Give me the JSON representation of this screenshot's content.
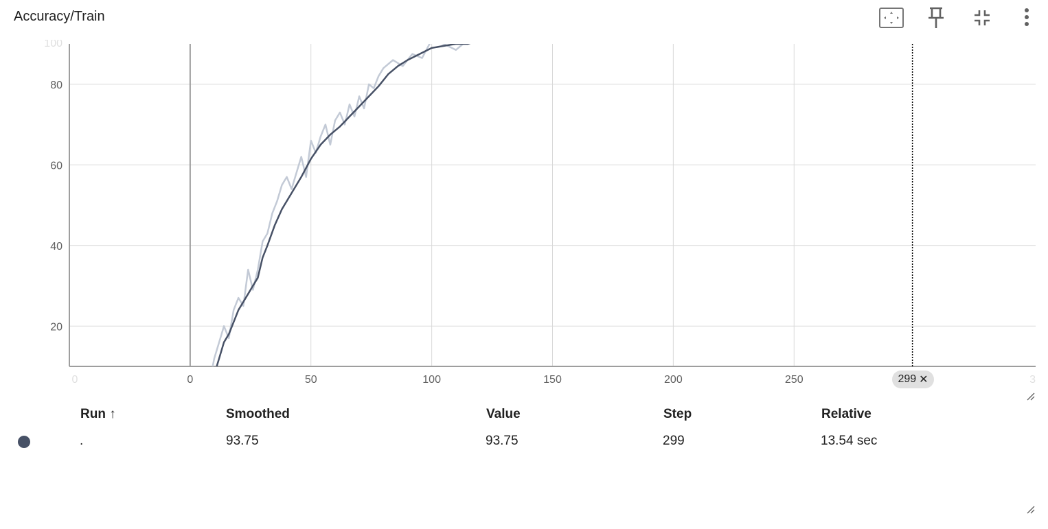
{
  "title": "Accuracy/Train",
  "toolbar": [
    {
      "name": "fit-domain-button",
      "icon": "fit-to-data-icon"
    },
    {
      "name": "pin-button",
      "icon": "pin-icon"
    },
    {
      "name": "collapse-button",
      "icon": "collapse-icon"
    },
    {
      "name": "more-options-button",
      "icon": "more-vert-icon"
    }
  ],
  "colors": {
    "smoothed_line": "#475166",
    "raw_line": "#c3cad6",
    "grid": "#d9d9d9",
    "axis": "#9e9e9e"
  },
  "chart_data": {
    "type": "line",
    "title": "Accuracy/Train",
    "xlabel": "",
    "ylabel": "",
    "xlim": [
      -50,
      350
    ],
    "ylim": [
      10,
      90
    ],
    "x_ticks": [
      0,
      50,
      100,
      150,
      200,
      250
    ],
    "x_ticks_faint": [
      "0",
      "3"
    ],
    "y_ticks": [
      20,
      40,
      60,
      80
    ],
    "y_tick_faint": "100",
    "grid": true,
    "cursor_step": 299,
    "cursor_label": "299",
    "series": [
      {
        "name": ".",
        "role": "smoothed",
        "x": [
          8,
          10,
          12,
          14,
          16,
          18,
          20,
          22,
          24,
          26,
          28,
          30,
          32,
          35,
          38,
          42,
          46,
          50,
          54,
          58,
          62,
          66,
          70,
          74,
          78,
          82,
          86,
          90,
          95,
          100,
          105,
          110,
          115,
          120,
          125,
          130,
          140,
          150,
          160,
          170,
          180,
          190,
          200,
          210,
          220,
          230,
          240,
          250,
          260,
          270,
          280,
          299
        ],
        "values": [
          5,
          8,
          12,
          16,
          18,
          21,
          24,
          26,
          28,
          30,
          32,
          37,
          40,
          45,
          49,
          53,
          57,
          61.5,
          65,
          67.5,
          69.5,
          72,
          74.5,
          77,
          79.5,
          82.5,
          84.5,
          86,
          87.5,
          89,
          89.5,
          90,
          90,
          91,
          91,
          91.5,
          91.8,
          92,
          92,
          92.3,
          92.6,
          92.8,
          93,
          93.2,
          93.4,
          93.5,
          93.6,
          93.7,
          93.7,
          93.75,
          93.75,
          93.75
        ]
      },
      {
        "name": ".",
        "role": "raw",
        "x": [
          8,
          10,
          12,
          14,
          16,
          18,
          20,
          22,
          24,
          26,
          28,
          30,
          32,
          34,
          36,
          38,
          40,
          42,
          44,
          46,
          48,
          50,
          52,
          54,
          56,
          58,
          60,
          62,
          64,
          66,
          68,
          70,
          72,
          74,
          76,
          78,
          80,
          84,
          88,
          92,
          96,
          100,
          105,
          110,
          115,
          120,
          125,
          130,
          135,
          140,
          145,
          150,
          160,
          170,
          180,
          190,
          200,
          210,
          220,
          230,
          240,
          250,
          260,
          270,
          280,
          299
        ],
        "values": [
          6,
          12,
          16,
          20,
          17,
          24,
          27,
          25,
          34,
          29,
          34,
          41,
          43,
          48,
          51,
          55,
          57,
          54,
          58,
          62,
          57,
          66,
          63,
          67,
          70,
          65,
          71,
          73,
          70,
          75,
          72,
          77,
          74,
          80,
          79,
          82,
          84,
          86,
          84.5,
          87.5,
          86.5,
          91,
          90,
          88.5,
          91,
          90.5,
          92,
          90.5,
          92,
          91,
          92.5,
          91.5,
          92.5,
          91.5,
          93,
          92.5,
          93.5,
          93,
          93.8,
          93.4,
          93.7,
          93.75,
          93.75,
          93.75,
          93.75,
          93.75
        ]
      }
    ]
  },
  "table": {
    "headers": {
      "run": "Run ↑",
      "smoothed": "Smoothed",
      "value": "Value",
      "step": "Step",
      "relative": "Relative"
    },
    "rows": [
      {
        "run": ".",
        "smoothed": "93.75",
        "value": "93.75",
        "step": "299",
        "relative": "13.54 sec"
      }
    ]
  }
}
